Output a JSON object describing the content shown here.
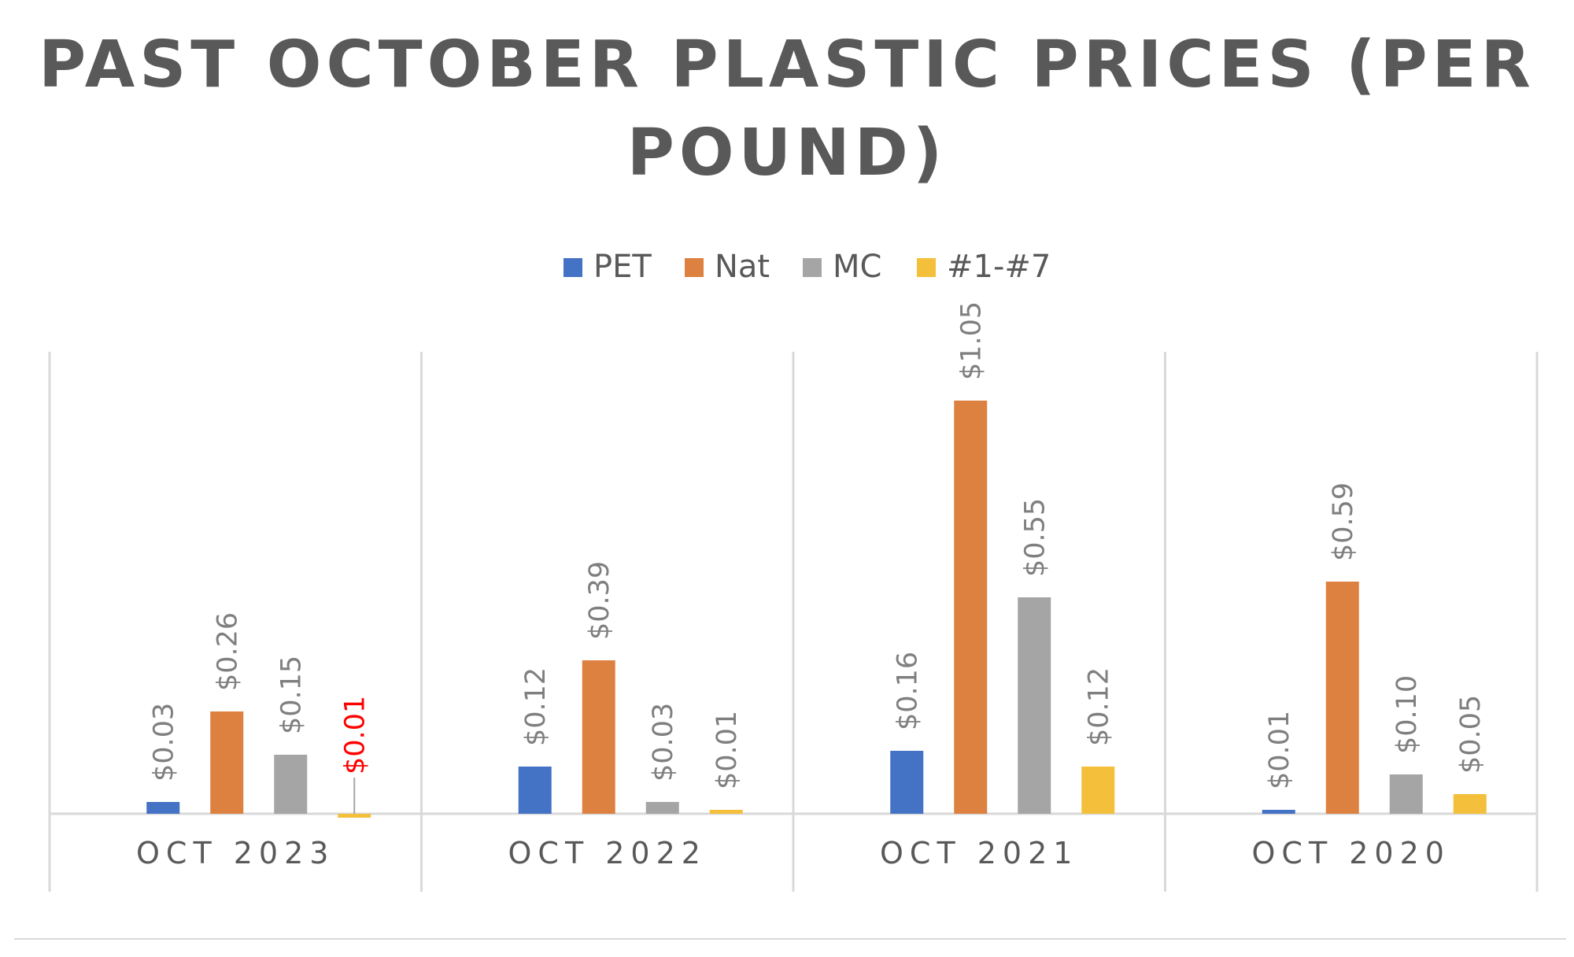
{
  "chart_data": {
    "type": "bar",
    "title": "PAST OCTOBER PLASTIC PRICES (PER POUND)",
    "title_lines": [
      "PAST OCTOBER PLASTIC PRICES (PER",
      "POUND)"
    ],
    "categories": [
      "OCT 2023",
      "OCT 2022",
      "OCT 2021",
      "OCT 2020"
    ],
    "series": [
      {
        "name": "PET",
        "color": "#4472c4",
        "values": [
          0.03,
          0.12,
          0.16,
          0.01
        ],
        "labels": [
          "$0.03",
          "$0.12",
          "$0.16",
          "$0.01"
        ]
      },
      {
        "name": "Nat",
        "color": "#dd8140",
        "values": [
          0.26,
          0.39,
          1.05,
          0.59
        ],
        "labels": [
          "$0.26",
          "$0.39",
          "$1.05",
          "$0.59"
        ]
      },
      {
        "name": "MC",
        "color": "#a5a5a5",
        "values": [
          0.15,
          0.03,
          0.55,
          0.1
        ],
        "labels": [
          "$0.15",
          "$0.03",
          "$0.55",
          "$0.10"
        ]
      },
      {
        "name": "#1-#7",
        "color": "#f4c03c",
        "values": [
          -0.01,
          0.01,
          0.12,
          0.05
        ],
        "labels": [
          "$0.01",
          "$0.01",
          "$0.12",
          "$0.05"
        ]
      }
    ],
    "negative_label_color": "#ff0000",
    "xlabel": "",
    "ylabel": "",
    "ylim": [
      -0.02,
      1.2
    ],
    "grid": "vertical category separators",
    "legend_position": "top"
  }
}
